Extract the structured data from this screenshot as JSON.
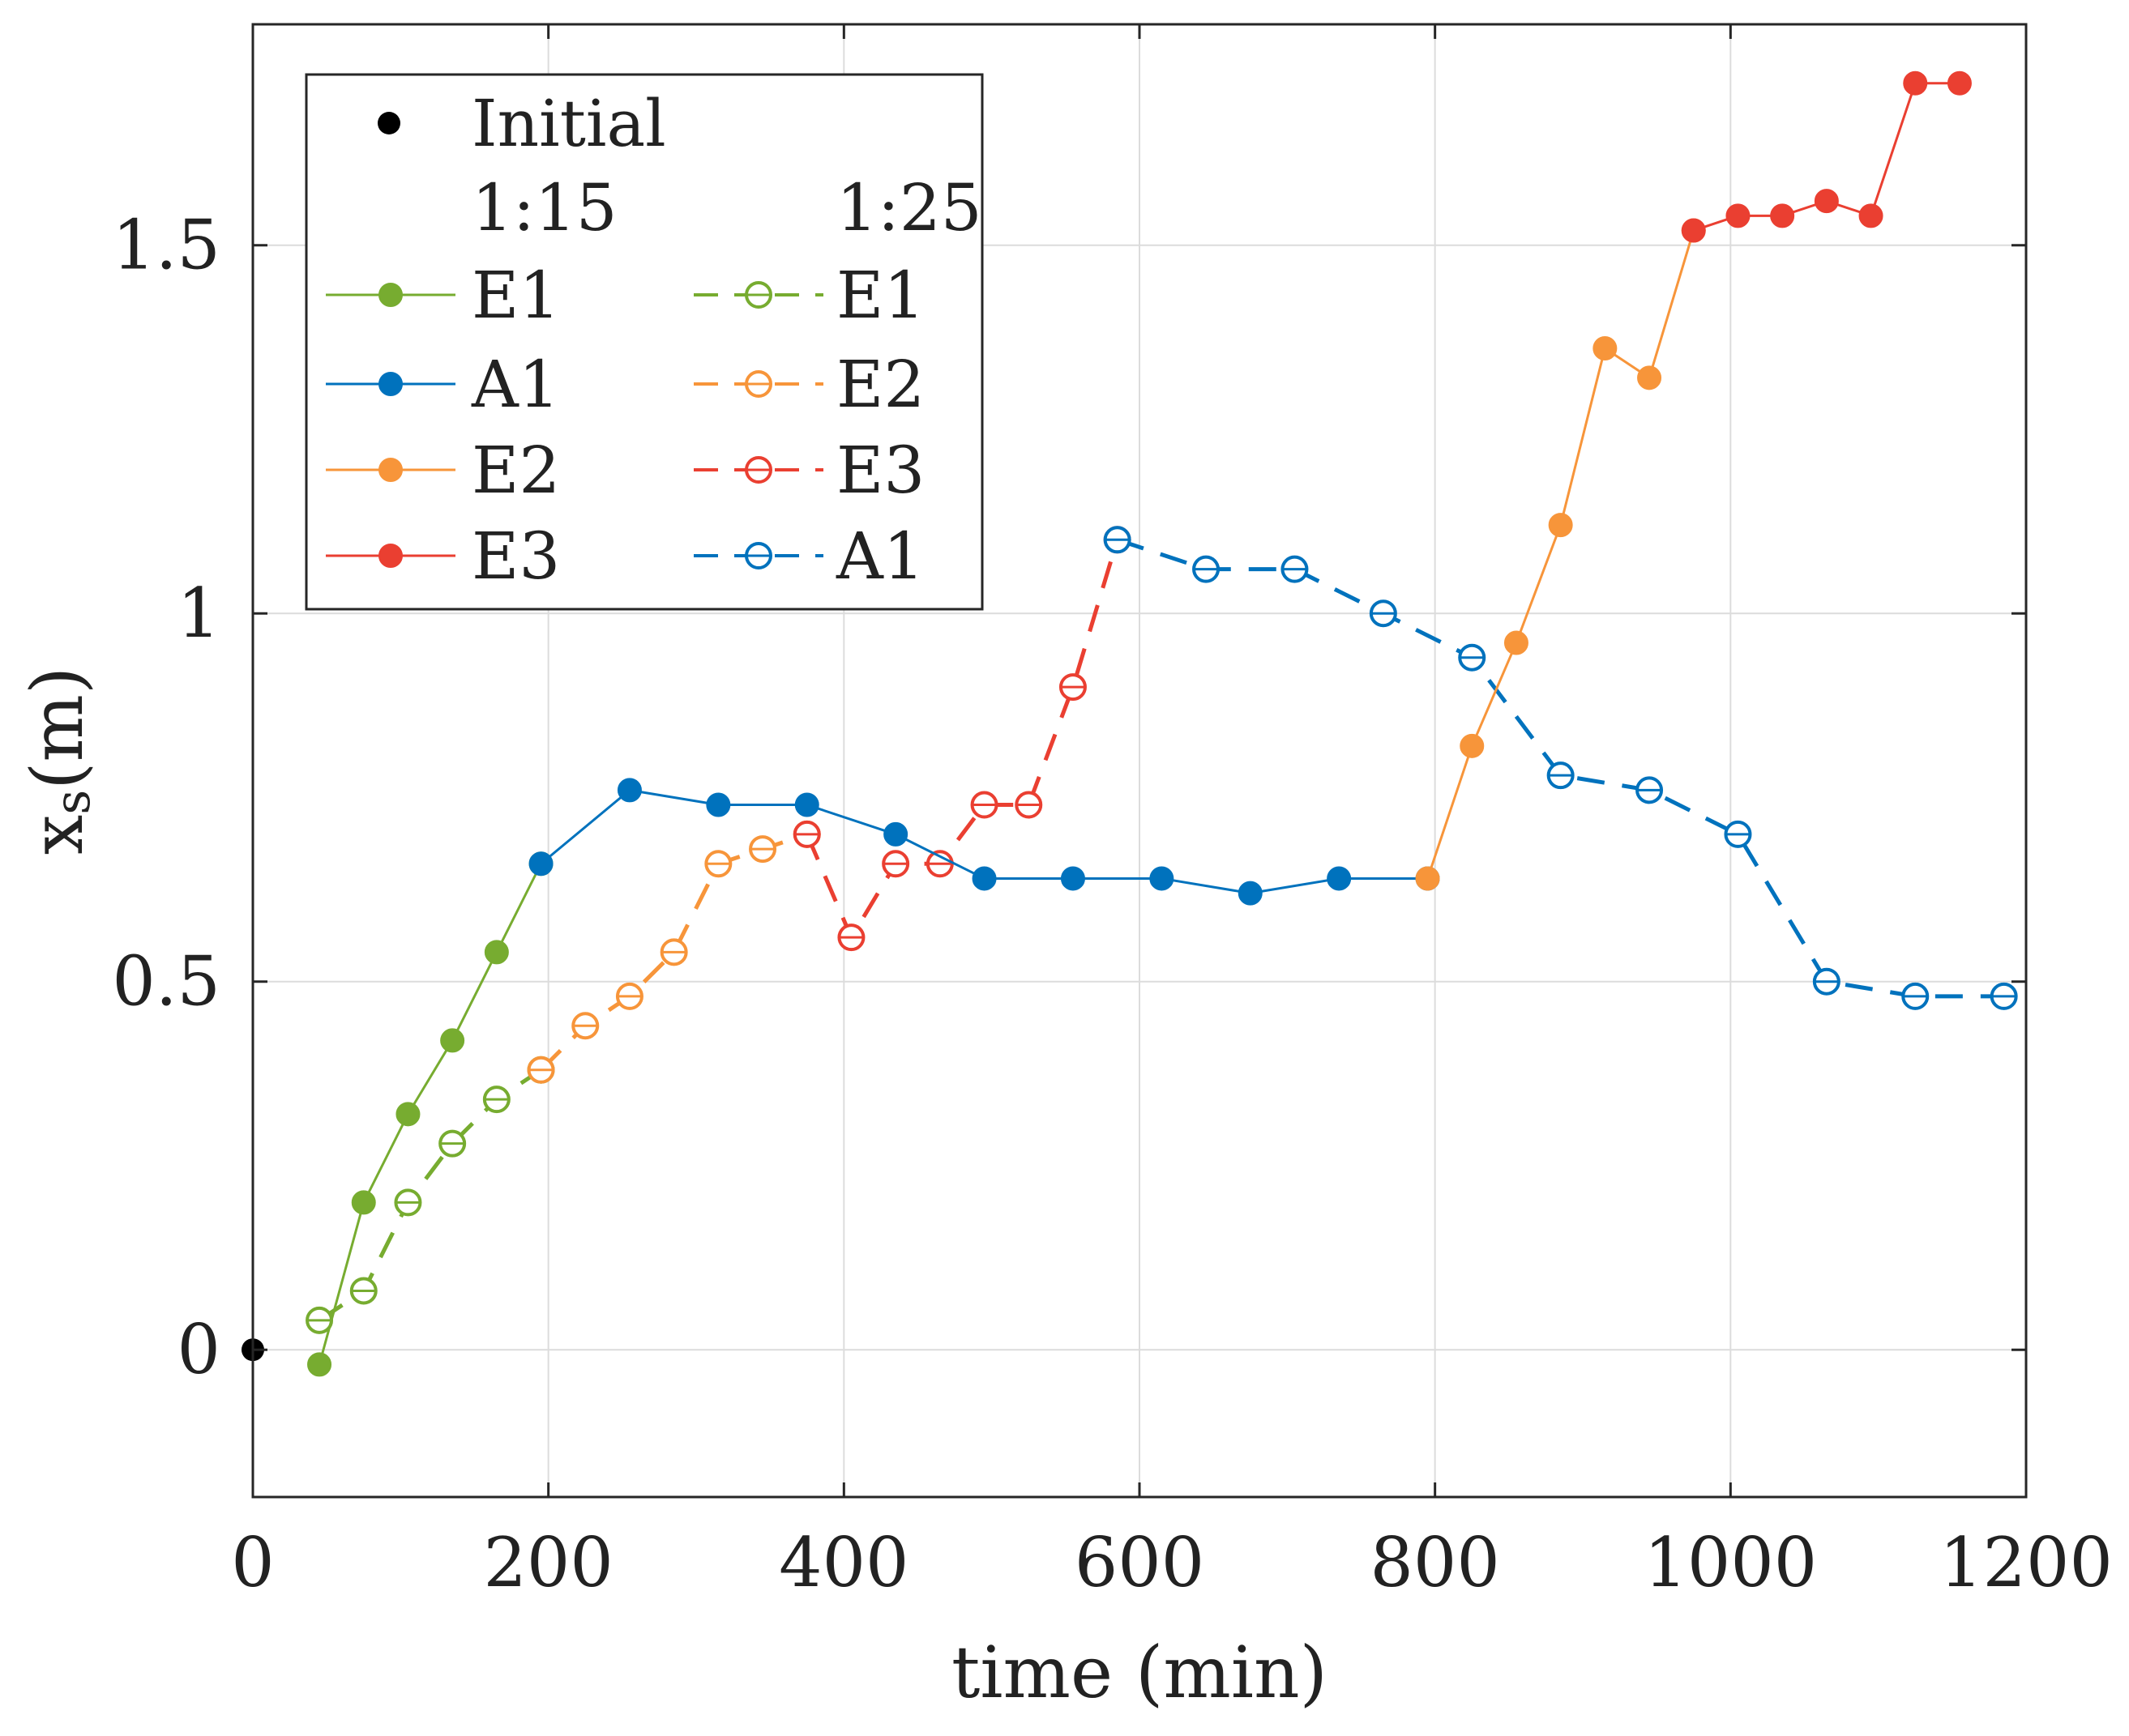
{
  "chart_data": {
    "type": "line",
    "title": "",
    "xlabel": "time (min)",
    "ylabel": "x",
    "ylabel_sub": "s",
    "ylabel_unit": "(m)",
    "xlim": [
      0,
      1200
    ],
    "ylim": [
      -0.2,
      1.8
    ],
    "xticks": [
      0,
      200,
      400,
      600,
      800,
      1000,
      1200
    ],
    "xtick_labels": [
      "0",
      "200",
      "400",
      "600",
      "800",
      "1000",
      "1200"
    ],
    "yticks": [
      0,
      0.5,
      1,
      1.5
    ],
    "ytick_labels": [
      "0",
      "0.5",
      "1",
      "1.5"
    ],
    "grid": true,
    "legend_position": "top-left",
    "legend": {
      "initial_label": "Initial",
      "group_left_header": "1:15",
      "group_right_header": "1:25"
    },
    "initial_point": {
      "x": 0,
      "y": 0,
      "color": "#000000"
    },
    "series": [
      {
        "name": "E1",
        "group": "1:15",
        "color": "#77AC30",
        "marker": "filled",
        "dashed": false,
        "x": [
          45,
          75,
          105,
          135,
          165,
          195
        ],
        "y": [
          -0.02,
          0.2,
          0.32,
          0.42,
          0.54,
          0.66
        ]
      },
      {
        "name": "A1",
        "group": "1:15",
        "color": "#0072BD",
        "marker": "filled",
        "dashed": false,
        "x": [
          195,
          255,
          315,
          375,
          435,
          495,
          555,
          615,
          675,
          735,
          795
        ],
        "y": [
          0.66,
          0.76,
          0.74,
          0.74,
          0.7,
          0.64,
          0.64,
          0.64,
          0.62,
          0.64,
          0.64
        ]
      },
      {
        "name": "E2",
        "group": "1:15",
        "color": "#F7953A",
        "marker": "filled",
        "dashed": false,
        "x": [
          795,
          825,
          855,
          885,
          915,
          945,
          975
        ],
        "y": [
          0.64,
          0.82,
          0.96,
          1.12,
          1.36,
          1.32,
          1.52
        ]
      },
      {
        "name": "E3",
        "group": "1:15",
        "color": "#EA3F31",
        "marker": "filled",
        "dashed": false,
        "x": [
          975,
          1005,
          1035,
          1065,
          1095,
          1125,
          1155
        ],
        "y": [
          1.52,
          1.54,
          1.54,
          1.56,
          1.54,
          1.72,
          1.72
        ]
      },
      {
        "name": "E1",
        "group": "1:25",
        "color": "#77AC30",
        "marker": "open",
        "dashed": true,
        "x": [
          45,
          75,
          105,
          135,
          165,
          195
        ],
        "y": [
          0.04,
          0.08,
          0.2,
          0.28,
          0.34,
          0.38
        ]
      },
      {
        "name": "E2",
        "group": "1:25",
        "color": "#F7953A",
        "marker": "open",
        "dashed": true,
        "x": [
          195,
          225,
          255,
          285,
          315,
          345,
          375
        ],
        "y": [
          0.38,
          0.44,
          0.48,
          0.54,
          0.66,
          0.68,
          0.7
        ]
      },
      {
        "name": "E3",
        "group": "1:25",
        "color": "#EA3F31",
        "marker": "open",
        "dashed": true,
        "x": [
          375,
          405,
          435,
          465,
          495,
          525,
          555,
          585
        ],
        "y": [
          0.7,
          0.56,
          0.66,
          0.66,
          0.74,
          0.74,
          0.9,
          1.1
        ]
      },
      {
        "name": "A1",
        "group": "1:25",
        "color": "#0072BD",
        "marker": "open",
        "dashed": true,
        "x": [
          585,
          645,
          705,
          765,
          825,
          885,
          945,
          1005,
          1065,
          1125,
          1185
        ],
        "y": [
          1.1,
          1.06,
          1.06,
          1.0,
          0.94,
          0.78,
          0.76,
          0.7,
          0.5,
          0.48,
          0.48
        ]
      }
    ]
  }
}
